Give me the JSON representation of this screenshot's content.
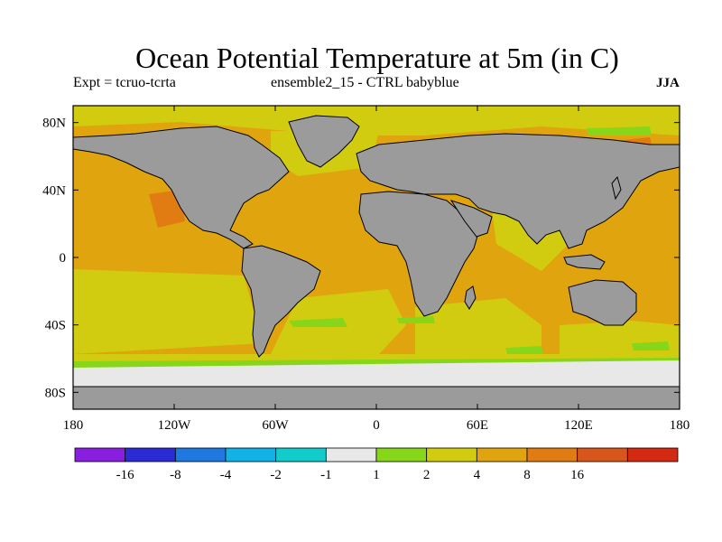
{
  "title": "Ocean Potential Temperature at 5m (in C)",
  "subtitle_left": "Expt = tcruo-tcrta",
  "subtitle_center": "ensemble2_15 - CTRL babyblue",
  "subtitle_right": "JJA",
  "lat_ticks": [
    {
      "label": "80N",
      "value": 80
    },
    {
      "label": "40N",
      "value": 40
    },
    {
      "label": "0",
      "value": 0
    },
    {
      "label": "40S",
      "value": -40
    },
    {
      "label": "80S",
      "value": -80
    }
  ],
  "lon_ticks": [
    {
      "label": "180",
      "value": -180
    },
    {
      "label": "120W",
      "value": -120
    },
    {
      "label": "60W",
      "value": -60
    },
    {
      "label": "0",
      "value": 0
    },
    {
      "label": "60E",
      "value": 60
    },
    {
      "label": "120E",
      "value": 120
    },
    {
      "label": "180",
      "value": 180
    }
  ],
  "colorbar": {
    "colors": [
      "#8a1ee0",
      "#2b2bd6",
      "#1f78e0",
      "#12b2e6",
      "#12cccc",
      "#e8e8e8",
      "#88d61a",
      "#d2cc10",
      "#e0a40e",
      "#e07c12",
      "#d8561c",
      "#d42a12"
    ],
    "labels": [
      "-16",
      "-8",
      "-4",
      "-2",
      "-1",
      "1",
      "2",
      "4",
      "8",
      "16"
    ]
  },
  "colors": {
    "land": "#9b9b9b",
    "ocean_warm": "#e0a40e",
    "ocean_mild": "#d2cc10",
    "ocean_cool": "#88d61a",
    "antarctic_band": "#e8e8e8",
    "hotspot": "#e07c12"
  }
}
